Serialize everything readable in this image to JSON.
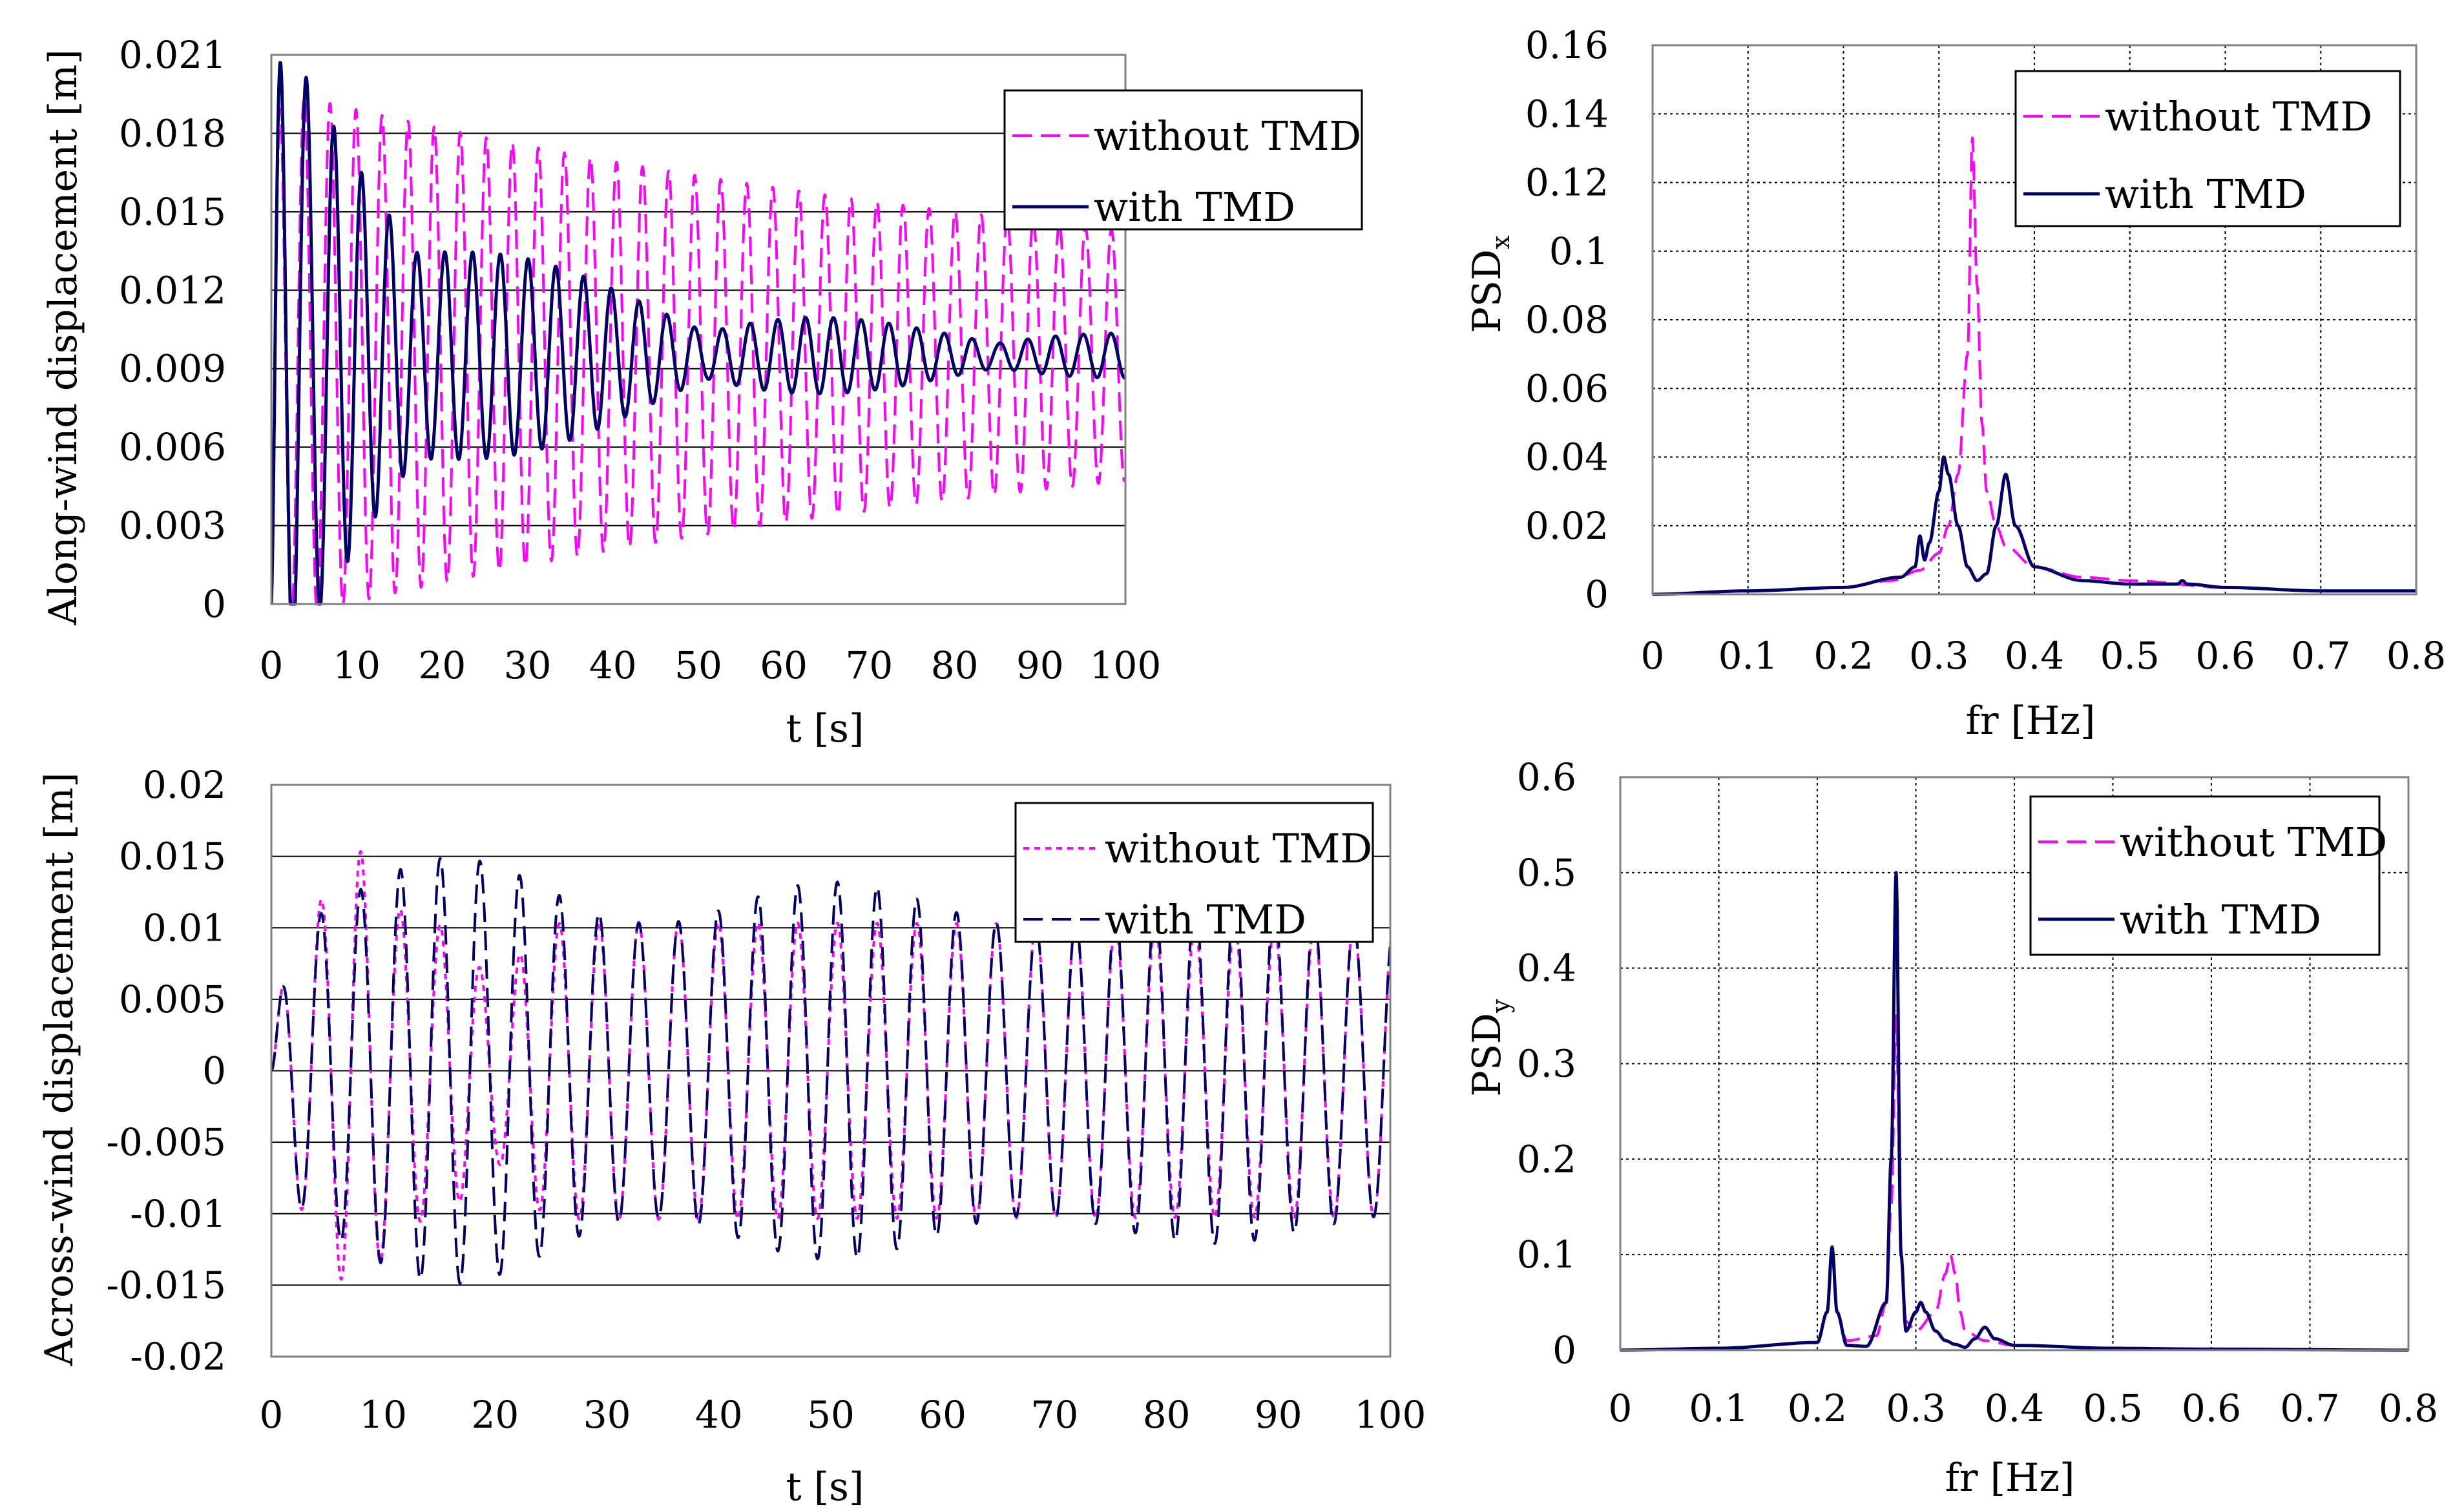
{
  "colors": {
    "without": "#FF00FF",
    "with": "#000066",
    "grid": "#000000",
    "frame": "#808080"
  },
  "chart_data": [
    {
      "type": "line",
      "xlabel": "t [s]",
      "ylabel": "Along-wind displacement [m]",
      "xlim": [
        0,
        100
      ],
      "ylim": [
        0,
        0.021
      ],
      "xticks": [
        "0",
        "10",
        "20",
        "30",
        "40",
        "50",
        "60",
        "70",
        "80",
        "90",
        "100"
      ],
      "yticks": [
        "0",
        "0.003",
        "0.006",
        "0.009",
        "0.012",
        "0.015",
        "0.018",
        "0.021"
      ],
      "grid": "horizontal",
      "legend_position": "top-right",
      "series": [
        {
          "name": "without TMD",
          "style": "dashed",
          "model": {
            "mean": 0.0095,
            "amp0": 0.009,
            "decay": 0.0092,
            "amp_floor": 0.0012,
            "period": 3.05,
            "rise": 1.4
          }
        },
        {
          "name": "with TMD",
          "style": "solid",
          "model": {
            "mean": 0.0095,
            "amp0": 0.0095,
            "decay": 0.058,
            "beat_amp": 0.0032,
            "beat_decay": 0.02,
            "beat_period": 34,
            "amp_floor": 0.0004,
            "period": 3.25,
            "rise": 1.4
          }
        }
      ]
    },
    {
      "type": "line",
      "xlabel": "fr [Hz]",
      "ylabel": "PSD",
      "ylabel_subscript": "x",
      "xlim": [
        0,
        0.8
      ],
      "ylim": [
        0,
        0.16
      ],
      "xticks": [
        "0",
        "0.1",
        "0.2",
        "0.3",
        "0.4",
        "0.5",
        "0.6",
        "0.7",
        "0.8"
      ],
      "yticks": [
        "0",
        "0.02",
        "0.04",
        "0.06",
        "0.08",
        "0.1",
        "0.12",
        "0.14",
        "0.16"
      ],
      "grid": "both",
      "legend_position": "top-right",
      "series": [
        {
          "name": "without TMD",
          "style": "dashed",
          "x": [
            0,
            0.1,
            0.2,
            0.25,
            0.28,
            0.3,
            0.31,
            0.32,
            0.33,
            0.335,
            0.34,
            0.345,
            0.35,
            0.36,
            0.37,
            0.4,
            0.45,
            0.5,
            0.6,
            0.7,
            0.8
          ],
          "y": [
            0,
            0.001,
            0.002,
            0.004,
            0.007,
            0.012,
            0.02,
            0.035,
            0.07,
            0.133,
            0.09,
            0.05,
            0.03,
            0.02,
            0.014,
            0.008,
            0.005,
            0.004,
            0.002,
            0.001,
            0.001
          ]
        },
        {
          "name": "with TMD",
          "style": "solid",
          "x": [
            0,
            0.1,
            0.2,
            0.26,
            0.275,
            0.28,
            0.285,
            0.29,
            0.3,
            0.305,
            0.31,
            0.32,
            0.33,
            0.34,
            0.35,
            0.36,
            0.37,
            0.38,
            0.4,
            0.45,
            0.5,
            0.55,
            0.555,
            0.56,
            0.6,
            0.7,
            0.8
          ],
          "y": [
            0,
            0.001,
            0.002,
            0.005,
            0.008,
            0.017,
            0.01,
            0.015,
            0.03,
            0.04,
            0.035,
            0.02,
            0.008,
            0.004,
            0.006,
            0.02,
            0.035,
            0.02,
            0.008,
            0.004,
            0.003,
            0.003,
            0.004,
            0.003,
            0.002,
            0.001,
            0.001
          ]
        }
      ]
    },
    {
      "type": "line",
      "xlabel": "t [s]",
      "ylabel": "Across-wind displacement [m]",
      "xlim": [
        0,
        100
      ],
      "ylim": [
        -0.02,
        0.02
      ],
      "xticks": [
        "0",
        "10",
        "20",
        "30",
        "40",
        "50",
        "60",
        "70",
        "80",
        "90",
        "100"
      ],
      "yticks": [
        "-0.02",
        "-0.015",
        "-0.01",
        "-0.005",
        "0",
        "0.005",
        "0.01",
        "0.015",
        "0.02"
      ],
      "grid": "horizontal",
      "legend_position": "top-right",
      "series": [
        {
          "name": "without TMD",
          "style": "dotted",
          "model": {
            "period": 3.55,
            "amp0": 0.0105,
            "decay": 0.005,
            "amp_floor": 0.0098,
            "extra": [
              [
                7.5,
                0.0155
              ],
              [
                20,
                0.0065
              ]
            ]
          }
        },
        {
          "name": "with TMD",
          "style": "dashed",
          "model": {
            "period": 3.55,
            "amp0": 0.0105,
            "amp_floor": 0.0098,
            "beat_amp": 0.0055,
            "beat_period": 34,
            "beat_phase": 17,
            "beat_decay": 0.012
          }
        }
      ]
    },
    {
      "type": "line",
      "xlabel": "fr [Hz]",
      "ylabel": "PSD",
      "ylabel_subscript": "y",
      "xlim": [
        0,
        0.8
      ],
      "ylim": [
        0,
        0.6
      ],
      "xticks": [
        "0",
        "0.1",
        "0.2",
        "0.3",
        "0.4",
        "0.5",
        "0.6",
        "0.7",
        "0.8"
      ],
      "yticks": [
        "0",
        "0.1",
        "0.2",
        "0.3",
        "0.4",
        "0.5",
        "0.6"
      ],
      "grid": "both",
      "legend_position": "top-right",
      "series": [
        {
          "name": "without TMD",
          "style": "dashed",
          "x": [
            0,
            0.1,
            0.2,
            0.21,
            0.215,
            0.22,
            0.23,
            0.26,
            0.27,
            0.275,
            0.28,
            0.285,
            0.29,
            0.3,
            0.32,
            0.33,
            0.335,
            0.34,
            0.345,
            0.35,
            0.37,
            0.4,
            0.5,
            0.6,
            0.8
          ],
          "y": [
            0,
            0.002,
            0.008,
            0.04,
            0.1,
            0.04,
            0.01,
            0.015,
            0.05,
            0.15,
            0.35,
            0.1,
            0.03,
            0.02,
            0.04,
            0.08,
            0.1,
            0.08,
            0.04,
            0.02,
            0.01,
            0.005,
            0.002,
            0.001,
            0
          ],
          "raw_y_visible_peaks": [
            0.1,
            0.1
          ]
        },
        {
          "name": "with TMD",
          "style": "solid",
          "x": [
            0,
            0.1,
            0.2,
            0.21,
            0.215,
            0.22,
            0.23,
            0.25,
            0.27,
            0.275,
            0.28,
            0.285,
            0.29,
            0.3,
            0.305,
            0.31,
            0.32,
            0.33,
            0.34,
            0.35,
            0.36,
            0.37,
            0.38,
            0.4,
            0.5,
            0.6,
            0.8
          ],
          "y": [
            0,
            0.002,
            0.008,
            0.04,
            0.108,
            0.04,
            0.005,
            0.004,
            0.05,
            0.2,
            0.5,
            0.1,
            0.02,
            0.04,
            0.05,
            0.04,
            0.02,
            0.01,
            0.006,
            0.003,
            0.012,
            0.024,
            0.012,
            0.005,
            0.002,
            0.001,
            0
          ]
        }
      ]
    }
  ]
}
